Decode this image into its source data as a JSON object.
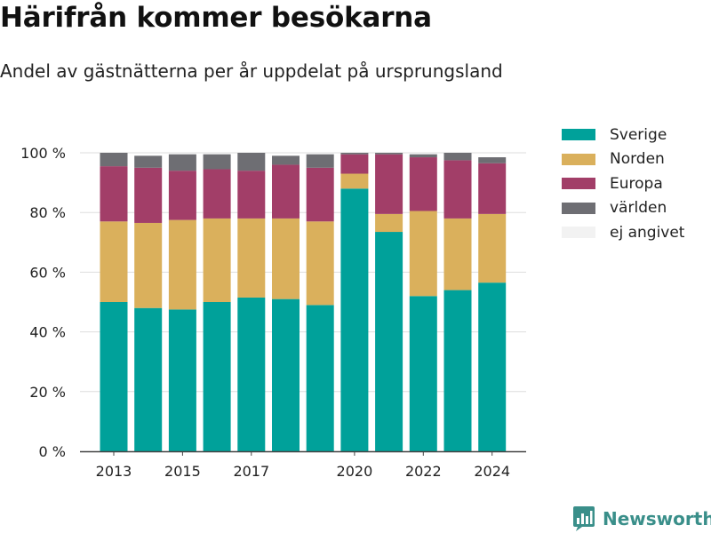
{
  "header": {
    "title": "Härifrån kommer besökarna",
    "subtitle": "Andel av gästnätterna per år uppdelat på ursprungsland"
  },
  "brand": {
    "name": "Newsworthy",
    "icon": "newsworthy-chart-logo-icon",
    "color": "#3a8f8a"
  },
  "chart_data": {
    "type": "bar",
    "stacked": true,
    "categories": [
      2013,
      2014,
      2015,
      2016,
      2017,
      2018,
      2019,
      2020,
      2021,
      2022,
      2023,
      2024
    ],
    "x_tick_labels": [
      {
        "year": 2013,
        "label": "2013"
      },
      {
        "year": 2015,
        "label": "2015"
      },
      {
        "year": 2017,
        "label": "2017"
      },
      {
        "year": 2020,
        "label": "2020"
      },
      {
        "year": 2022,
        "label": "2022"
      },
      {
        "year": 2024,
        "label": "2024"
      }
    ],
    "y_ticks": [
      {
        "value": 0,
        "label": "0 %"
      },
      {
        "value": 20,
        "label": "20 %"
      },
      {
        "value": 40,
        "label": "40 %"
      },
      {
        "value": 60,
        "label": "60 %"
      },
      {
        "value": 80,
        "label": "80 %"
      },
      {
        "value": 100,
        "label": "100 %"
      }
    ],
    "ylim": [
      0,
      100
    ],
    "grid": true,
    "legend_position": "top-right",
    "series": [
      {
        "name": "Sverige",
        "color": "#00a19a",
        "values": [
          50,
          48,
          47.5,
          50,
          51.5,
          51,
          49,
          88,
          73.5,
          52,
          54,
          56.5
        ]
      },
      {
        "name": "Norden",
        "color": "#dab05c",
        "values": [
          27,
          28.5,
          30,
          28,
          26.5,
          27,
          28,
          5,
          6,
          28.5,
          24,
          23
        ]
      },
      {
        "name": "Europa",
        "color": "#a23e68",
        "values": [
          18.5,
          18.5,
          16.5,
          16.5,
          16,
          18,
          18,
          6.5,
          20,
          18,
          19.5,
          17
        ]
      },
      {
        "name": "världen",
        "color": "#6e6e73",
        "values": [
          4.5,
          4,
          5.5,
          5,
          6,
          3,
          4.5,
          0.5,
          0.5,
          1,
          2.5,
          2
        ]
      },
      {
        "name": "ej angivet",
        "color": "#f2f2f2",
        "values": [
          0,
          0,
          0,
          0,
          0,
          0,
          0,
          0,
          0,
          0,
          0,
          0
        ]
      }
    ]
  }
}
